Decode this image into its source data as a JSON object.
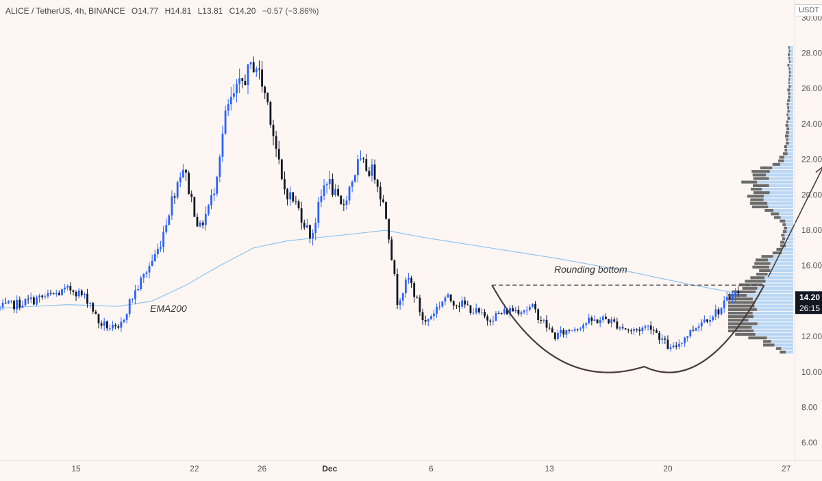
{
  "header": {
    "symbol": "ALICE / TetherUS, 4h, BINANCE",
    "open": "O14.77",
    "high": "H14.81",
    "low": "L13.81",
    "close": "C14.20",
    "change": "−0.57 (−3.86%)"
  },
  "currency": "USDT",
  "colors": {
    "up": "#2962ff",
    "down": "#131722",
    "ema": "#90c4f0",
    "annotation": "#4a3c3c",
    "volume_profile_up": "#b9d7f5",
    "volume_profile_down": "#6b6b6b"
  },
  "price_badges": {
    "last_price": "14.20",
    "countdown": "26:15"
  },
  "annotations": {
    "pattern_label": "Rounding bottom",
    "ema_label": "EMA200"
  },
  "chart_data": {
    "type": "candlestick",
    "y_axis": {
      "range": [
        5,
        31
      ],
      "ticks": [
        "6.00",
        "8.00",
        "10.00",
        "12.00",
        "14.00",
        "16.00",
        "18.00",
        "20.00",
        "22.00",
        "24.00",
        "26.00",
        "28.00",
        "30.00"
      ]
    },
    "x_axis": {
      "range_days": [
        -47,
        0
      ],
      "ticks": [
        {
          "label": "15",
          "day": -42.5
        },
        {
          "label": "22",
          "day": -35.5
        },
        {
          "label": "26",
          "day": -31.5
        },
        {
          "label": "Dec",
          "day": -27.5
        },
        {
          "label": "6",
          "day": -21.5
        },
        {
          "label": "13",
          "day": -14.5
        },
        {
          "label": "20",
          "day": -7.5
        },
        {
          "label": "27",
          "day": -0.5
        }
      ]
    },
    "price_anchors": [
      {
        "day": -47,
        "price": 13.6
      },
      {
        "day": -44,
        "price": 14.3
      },
      {
        "day": -42.7,
        "price": 14.7
      },
      {
        "day": -41.7,
        "price": 14.0
      },
      {
        "day": -41.2,
        "price": 12.8
      },
      {
        "day": -40.0,
        "price": 12.3
      },
      {
        "day": -39.3,
        "price": 14.0
      },
      {
        "day": -37.6,
        "price": 17.0
      },
      {
        "day": -36.9,
        "price": 19.5
      },
      {
        "day": -36.2,
        "price": 21.7
      },
      {
        "day": -35.2,
        "price": 18.0
      },
      {
        "day": -34.4,
        "price": 20.0
      },
      {
        "day": -33.6,
        "price": 24.8
      },
      {
        "day": -32.6,
        "price": 26.5
      },
      {
        "day": -31.9,
        "price": 27.5
      },
      {
        "day": -31.1,
        "price": 25.0
      },
      {
        "day": -30.3,
        "price": 20.5
      },
      {
        "day": -29.5,
        "price": 19.5
      },
      {
        "day": -28.6,
        "price": 17.6
      },
      {
        "day": -27.7,
        "price": 21.0
      },
      {
        "day": -26.8,
        "price": 19.2
      },
      {
        "day": -25.8,
        "price": 21.8
      },
      {
        "day": -24.8,
        "price": 21.2
      },
      {
        "day": -24.1,
        "price": 18.6
      },
      {
        "day": -23.5,
        "price": 14.0
      },
      {
        "day": -22.8,
        "price": 15.3
      },
      {
        "day": -21.9,
        "price": 12.7
      },
      {
        "day": -20.7,
        "price": 14.2
      },
      {
        "day": -19.4,
        "price": 13.7
      },
      {
        "day": -18.2,
        "price": 13.0
      },
      {
        "day": -16.8,
        "price": 13.5
      },
      {
        "day": -15.5,
        "price": 13.6
      },
      {
        "day": -14.2,
        "price": 12.0
      },
      {
        "day": -12.3,
        "price": 12.8
      },
      {
        "day": -11.2,
        "price": 13.0
      },
      {
        "day": -9.7,
        "price": 12.3
      },
      {
        "day": -8.5,
        "price": 12.6
      },
      {
        "day": -7.3,
        "price": 11.2
      },
      {
        "day": -5.6,
        "price": 12.8
      },
      {
        "day": -4.3,
        "price": 13.6
      },
      {
        "day": -3.6,
        "price": 14.6
      },
      {
        "day": -3.2,
        "price": 14.2
      }
    ],
    "ema200": [
      {
        "day": -47,
        "price": 13.6
      },
      {
        "day": -43,
        "price": 13.8
      },
      {
        "day": -40,
        "price": 13.7
      },
      {
        "day": -38,
        "price": 14.0
      },
      {
        "day": -36,
        "price": 14.9
      },
      {
        "day": -34,
        "price": 16.0
      },
      {
        "day": -32,
        "price": 17.0
      },
      {
        "day": -30,
        "price": 17.4
      },
      {
        "day": -28,
        "price": 17.6
      },
      {
        "day": -26,
        "price": 17.8
      },
      {
        "day": -24.2,
        "price": 18.0
      },
      {
        "day": -22,
        "price": 17.6
      },
      {
        "day": -18,
        "price": 17.0
      },
      {
        "day": -14,
        "price": 16.4
      },
      {
        "day": -10,
        "price": 15.7
      },
      {
        "day": -6,
        "price": 14.9
      },
      {
        "day": -3.2,
        "price": 14.4
      }
    ],
    "rounding_bottom": {
      "neckline_price": 14.9,
      "start_day": -17.9,
      "end_day": -1.8,
      "bottom_day": -8.9,
      "bottom_price": 10.3
    },
    "target_arrow": {
      "from": {
        "day": -1.8,
        "price": 14.9
      },
      "to": {
        "day": 1.7,
        "price": 21.6
      }
    },
    "volume_profile": {
      "price_range": [
        11.1,
        28.4
      ]
    }
  }
}
